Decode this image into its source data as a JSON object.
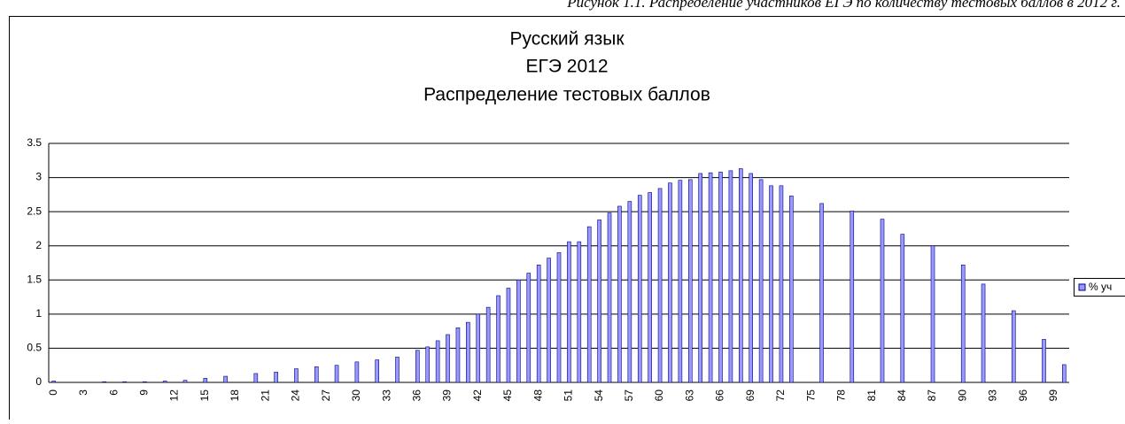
{
  "caption": "Рисунок 1.1. Распределение участников ЕГЭ по количеству тестовых баллов в 2012 г.",
  "chart_data": {
    "type": "bar",
    "title": [
      "Русский язык",
      "ЕГЭ 2012",
      "Распределение тестовых баллов"
    ],
    "categories": [
      "0",
      null,
      null,
      "3",
      null,
      null,
      "6",
      null,
      null,
      "9",
      null,
      null,
      "12",
      null,
      null,
      "15",
      null,
      null,
      "18",
      null,
      null,
      "21",
      null,
      null,
      "24",
      null,
      null,
      "27",
      null,
      null,
      "30",
      null,
      null,
      "33",
      null,
      null,
      "36",
      null,
      null,
      "39",
      null,
      null,
      "42",
      null,
      null,
      "45",
      null,
      null,
      "48",
      null,
      null,
      "51",
      null,
      null,
      "54",
      null,
      null,
      "57",
      null,
      null,
      "60",
      null,
      null,
      "63",
      null,
      null,
      "66",
      null,
      null,
      "69",
      null,
      null,
      "72",
      null,
      null,
      "75",
      null,
      null,
      "78",
      null,
      null,
      "81",
      null,
      null,
      "84",
      null,
      null,
      "87",
      null,
      null,
      "90",
      null,
      null,
      "93",
      null,
      null,
      "96",
      null,
      null,
      "99",
      null
    ],
    "series": [
      {
        "name": "% уч",
        "color": "#9999ff",
        "values": [
          0.02,
          null,
          null,
          null,
          null,
          0.01,
          null,
          0.01,
          null,
          0.01,
          null,
          0.02,
          null,
          0.03,
          null,
          0.06,
          null,
          0.09,
          null,
          null,
          0.13,
          null,
          0.15,
          null,
          0.2,
          null,
          0.23,
          null,
          0.25,
          null,
          0.3,
          null,
          0.33,
          null,
          0.37,
          null,
          0.47,
          0.52,
          0.61,
          0.7,
          0.8,
          0.88,
          1.0,
          1.1,
          1.27,
          1.38,
          1.5,
          1.6,
          1.72,
          1.82,
          1.9,
          2.06,
          2.06,
          2.28,
          2.38,
          2.48,
          2.58,
          2.65,
          2.74,
          2.78,
          2.84,
          2.92,
          2.96,
          2.97,
          3.06,
          3.07,
          3.08,
          3.1,
          3.13,
          3.06,
          2.97,
          2.88,
          2.88,
          2.73,
          null,
          null,
          2.62,
          null,
          null,
          2.51,
          null,
          null,
          2.39,
          null,
          2.17,
          null,
          null,
          2.0,
          null,
          null,
          1.72,
          null,
          1.44,
          null,
          null,
          1.05,
          null,
          null,
          0.63,
          null,
          0.26
        ]
      }
    ],
    "ylim": [
      0,
      3.5
    ],
    "yticks": [
      0,
      0.5,
      1,
      1.5,
      2,
      2.5,
      3,
      3.5
    ],
    "grid": true,
    "legend": "right"
  }
}
